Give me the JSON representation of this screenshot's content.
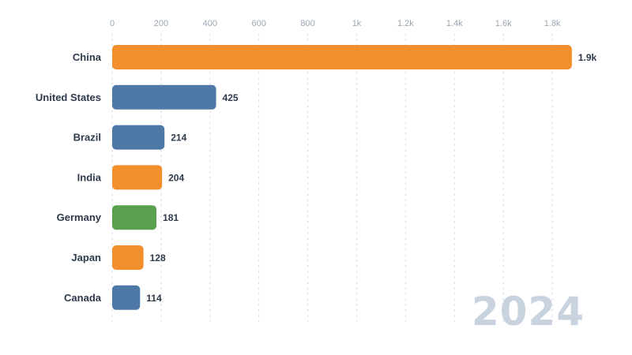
{
  "chart_data": {
    "type": "bar",
    "orientation": "horizontal",
    "title": "",
    "xlabel": "",
    "ylabel": "",
    "categories": [
      "China",
      "United States",
      "Brazil",
      "India",
      "Germany",
      "Japan",
      "Canada"
    ],
    "values": [
      1880,
      425,
      214,
      204,
      181,
      128,
      114
    ],
    "value_labels": [
      "1.9k",
      "425",
      "214",
      "204",
      "181",
      "128",
      "114"
    ],
    "colors": [
      "#f28e2b",
      "#4e79a7",
      "#4e79a7",
      "#f28e2b",
      "#59a14f",
      "#f28e2b",
      "#4e79a7"
    ],
    "xlim": [
      0,
      1900
    ],
    "x_ticks": [
      0,
      200,
      400,
      600,
      800,
      1000,
      1200,
      1400,
      1600,
      1800
    ],
    "x_tick_labels": [
      "0",
      "200",
      "400",
      "600",
      "800",
      "1k",
      "1.2k",
      "1.4k",
      "1.6k",
      "1.8k"
    ],
    "axis_position": "top",
    "grid": true
  },
  "year": "2024"
}
